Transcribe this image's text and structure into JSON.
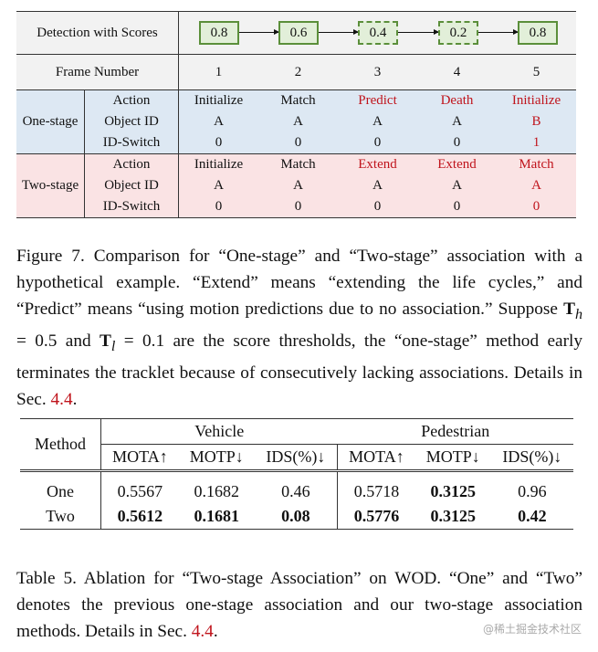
{
  "figure7": {
    "row_detection_label": "Detection with Scores",
    "scores": [
      {
        "value": "0.8",
        "dashed": false
      },
      {
        "value": "0.6",
        "dashed": false
      },
      {
        "value": "0.4",
        "dashed": true
      },
      {
        "value": "0.2",
        "dashed": true
      },
      {
        "value": "0.8",
        "dashed": false
      }
    ],
    "row_frame_label": "Frame Number",
    "frames": [
      "1",
      "2",
      "3",
      "4",
      "5"
    ],
    "groups": [
      {
        "label": "One-stage",
        "rows": [
          {
            "label": "Action",
            "cells": [
              "Initialize",
              "Match",
              "Predict",
              "Death",
              "Initialize"
            ],
            "red": [
              false,
              false,
              true,
              true,
              true
            ]
          },
          {
            "label": "Object ID",
            "cells": [
              "A",
              "A",
              "A",
              "A",
              "B"
            ],
            "red": [
              false,
              false,
              false,
              false,
              true
            ]
          },
          {
            "label": "ID-Switch",
            "cells": [
              "0",
              "0",
              "0",
              "0",
              "1"
            ],
            "red": [
              false,
              false,
              false,
              false,
              true
            ]
          }
        ]
      },
      {
        "label": "Two-stage",
        "rows": [
          {
            "label": "Action",
            "cells": [
              "Initialize",
              "Match",
              "Extend",
              "Extend",
              "Match"
            ],
            "red": [
              false,
              false,
              true,
              true,
              true
            ]
          },
          {
            "label": "Object ID",
            "cells": [
              "A",
              "A",
              "A",
              "A",
              "A"
            ],
            "red": [
              false,
              false,
              false,
              false,
              true
            ]
          },
          {
            "label": "ID-Switch",
            "cells": [
              "0",
              "0",
              "0",
              "0",
              "0"
            ],
            "red": [
              false,
              false,
              false,
              false,
              true
            ]
          }
        ]
      }
    ],
    "colors": {
      "box_fill": "#e2efd9",
      "box_border": "#5b8f3a",
      "one_stage_bg": "#dde8f3",
      "two_stage_bg": "#fae3e4",
      "highlight": "#c0141c"
    }
  },
  "caption7": {
    "text_before": "Figure 7.  Comparison for “One-stage” and “Two-stage” association with a hypothetical example. “Extend” means “extending the life cycles,” and “Predict” means “using motion predictions due to no association.” Suppose ",
    "th": "T",
    "th_sub": "h",
    "mid1": " = 0.5 and ",
    "tl": "T",
    "tl_sub": "l",
    "mid2": " = 0.1 are the score thresholds, the “one-stage” method early terminates the tracklet because of consecutively lacking associations. Details in Sec. ",
    "ref": "4.4",
    "end": "."
  },
  "table5": {
    "method_header": "Method",
    "groups": [
      "Vehicle",
      "Pedestrian"
    ],
    "metrics": [
      "MOTA↑",
      "MOTP↓",
      "IDS(%)↓",
      "MOTA↑",
      "MOTP↓",
      "IDS(%)↓"
    ],
    "rows": [
      {
        "method": "One",
        "values": [
          "0.5567",
          "0.1682",
          "0.46",
          "0.5718",
          "0.3125",
          "0.96"
        ],
        "bold": [
          false,
          false,
          false,
          false,
          true,
          false
        ]
      },
      {
        "method": "Two",
        "values": [
          "0.5612",
          "0.1681",
          "0.08",
          "0.5776",
          "0.3125",
          "0.42"
        ],
        "bold": [
          true,
          true,
          true,
          true,
          true,
          true
        ]
      }
    ]
  },
  "caption5": {
    "text": "Table 5.  Ablation for “Two-stage Association” on WOD. “One” and “Two” denotes the previous one-stage association and our two-stage association methods. Details in Sec. ",
    "ref": "4.4",
    "end": "."
  },
  "watermark": "@稀土掘金技术社区"
}
